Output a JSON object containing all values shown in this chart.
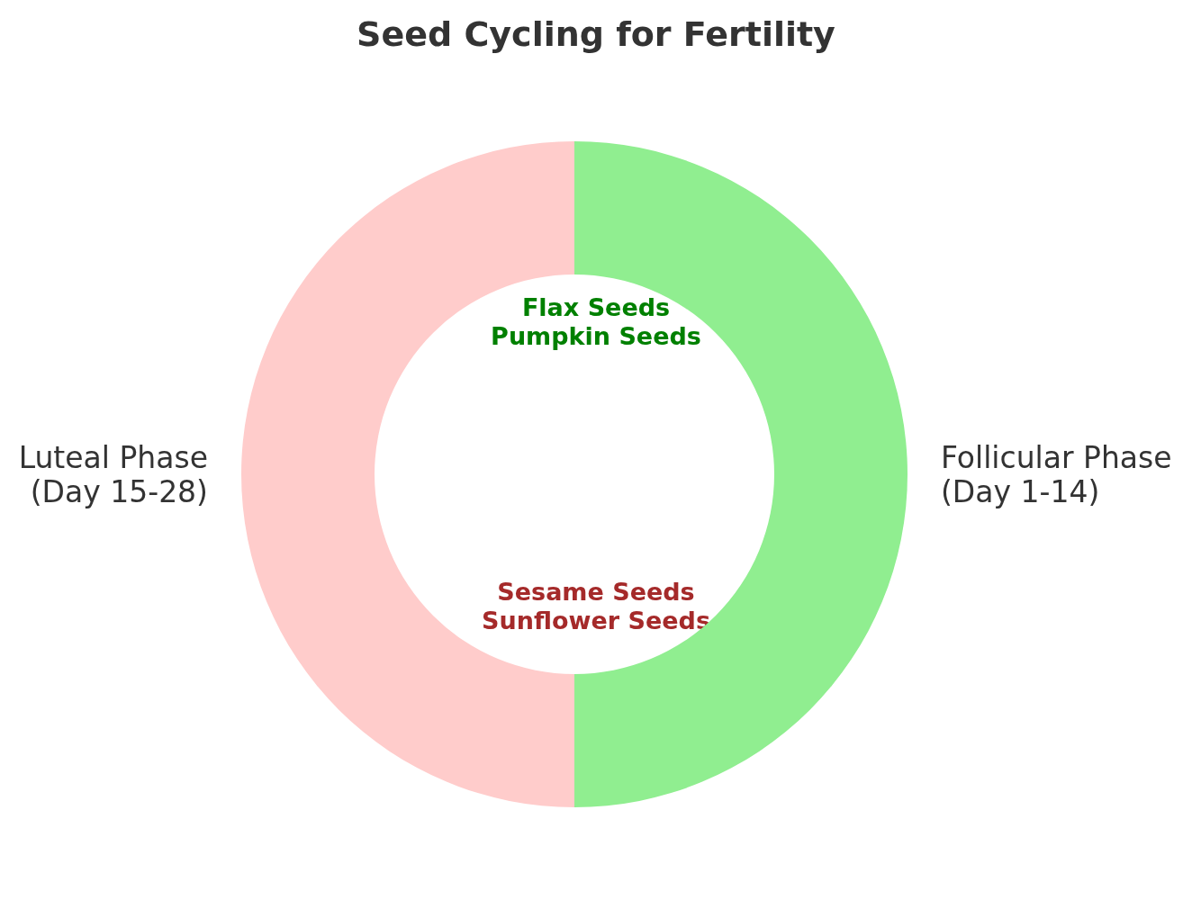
{
  "chart_data": {
    "type": "donut",
    "title": "Seed Cycling for Fertility",
    "categories": [
      "Follicular Phase\n(Day 1-14)",
      "Luteal Phase\n(Day 15-28)"
    ],
    "values": [
      50,
      50
    ],
    "colors": [
      "#90ee90",
      "#ffcccb"
    ],
    "annotations": [
      "Flax Seeds\nPumpkin Seeds",
      "Sesame Seeds\nSunflower Seeds"
    ]
  }
}
